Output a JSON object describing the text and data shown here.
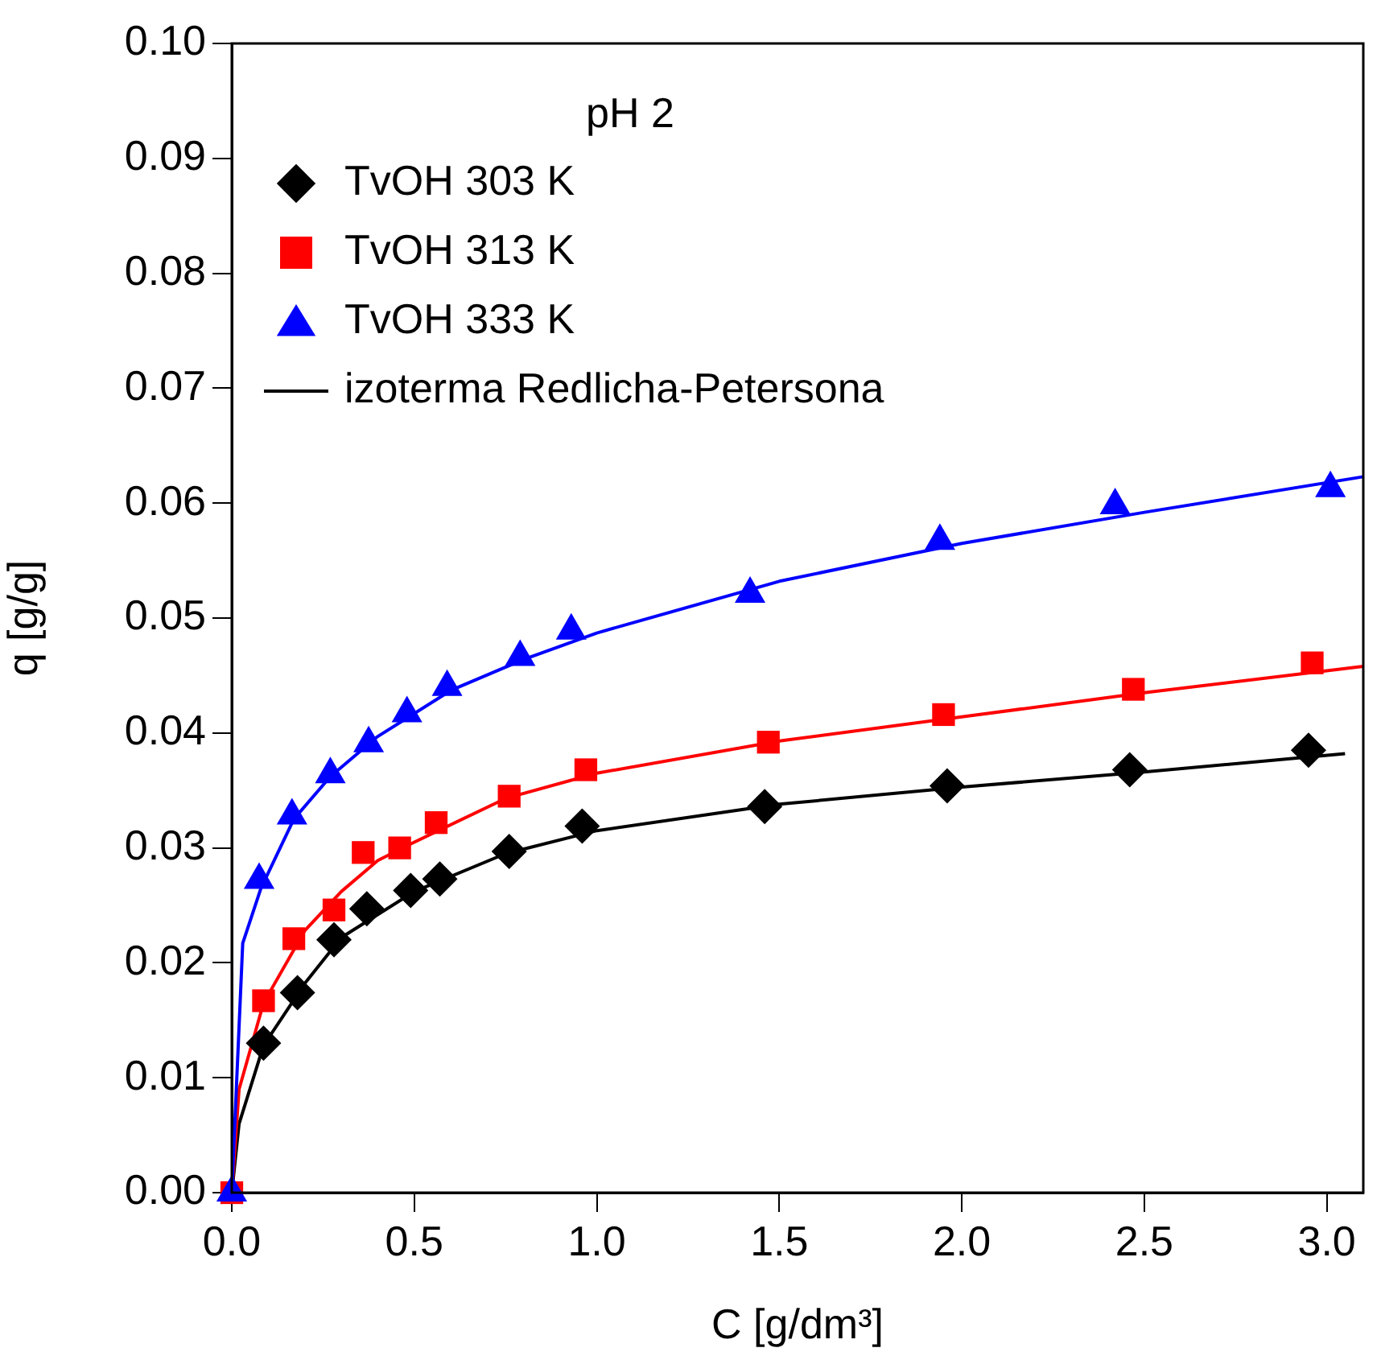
{
  "chart_data": {
    "type": "scatter",
    "xlabel": "C [g/dm³]",
    "ylabel": "q [g/g]",
    "legend_title": "pH 2",
    "legend": "top left",
    "grid": false,
    "xlim": [
      0,
      3.1
    ],
    "xticks": [
      {
        "value": 0,
        "label": "0.0"
      },
      {
        "value": 0.5,
        "label": "0.5"
      },
      {
        "value": 1,
        "label": "1.0"
      },
      {
        "value": 1.5,
        "label": "1.5"
      },
      {
        "value": 2,
        "label": "2.0"
      },
      {
        "value": 2.5,
        "label": "2.5"
      },
      {
        "value": 3,
        "label": "3.0"
      }
    ],
    "ylim": [
      0,
      0.1
    ],
    "yticks": [
      {
        "value": 0,
        "label": "0.00"
      },
      {
        "value": 0.01,
        "label": "0.01"
      },
      {
        "value": 0.02,
        "label": "0.02"
      },
      {
        "value": 0.03,
        "label": "0.03"
      },
      {
        "value": 0.04,
        "label": "0.04"
      },
      {
        "value": 0.05,
        "label": "0.05"
      },
      {
        "value": 0.06,
        "label": "0.06"
      },
      {
        "value": 0.07,
        "label": "0.07"
      },
      {
        "value": 0.08,
        "label": "0.08"
      },
      {
        "value": 0.09,
        "label": "0.09"
      },
      {
        "value": 0.1,
        "label": "0.10"
      }
    ],
    "series": [
      {
        "name": "TvOH 303 K",
        "marker": "diamond",
        "color": "#000000",
        "x": [
          0.087,
          0.18,
          0.28,
          0.37,
          0.49,
          0.57,
          0.76,
          0.96,
          1.46,
          1.96,
          2.46,
          2.95
        ],
        "values": [
          0.013,
          0.0174,
          0.022,
          0.0247,
          0.0263,
          0.0273,
          0.0297,
          0.0319,
          0.0336,
          0.0354,
          0.0368,
          0.0385
        ]
      },
      {
        "name": "TvOH 313 K",
        "marker": "square",
        "color": "#ff0000",
        "x": [
          0,
          0.087,
          0.17,
          0.28,
          0.36,
          0.46,
          0.56,
          0.76,
          0.97,
          1.47,
          1.95,
          2.47,
          2.96
        ],
        "values": [
          0,
          0.0167,
          0.0221,
          0.0246,
          0.0296,
          0.03,
          0.0322,
          0.0345,
          0.0368,
          0.0392,
          0.0416,
          0.0438,
          0.0461
        ]
      },
      {
        "name": "TvOH 333 K",
        "marker": "triangle",
        "color": "#0000ff",
        "x": [
          0,
          0.075,
          0.165,
          0.27,
          0.375,
          0.48,
          0.59,
          0.79,
          0.93,
          1.42,
          1.94,
          2.42,
          3.01
        ],
        "values": [
          0,
          0.0272,
          0.0328,
          0.0364,
          0.0391,
          0.0417,
          0.044,
          0.0466,
          0.0489,
          0.0521,
          0.0567,
          0.0598,
          0.0613
        ]
      },
      {
        "name": "izoterma Redlicha-Petersona",
        "type": "line",
        "marker": "none",
        "line_style": "solid",
        "color": "#000000",
        "x": [
          0,
          0.02,
          0.087,
          0.2,
          0.3,
          0.5,
          0.75,
          1.0,
          1.5,
          2.0,
          2.5,
          3.05
        ],
        "values": [
          0,
          0.006,
          0.0128,
          0.0182,
          0.0222,
          0.0262,
          0.0295,
          0.0315,
          0.0338,
          0.0353,
          0.0366,
          0.0382
        ]
      },
      {
        "type": "line",
        "marker": "none",
        "line_style": "solid",
        "color": "#ff0000",
        "x": [
          0,
          0.02,
          0.087,
          0.2,
          0.3,
          0.4,
          0.5,
          0.75,
          1.0,
          1.5,
          2.0,
          2.5,
          3.1
        ],
        "values": [
          0,
          0.009,
          0.0165,
          0.0228,
          0.0262,
          0.0289,
          0.0305,
          0.0343,
          0.0365,
          0.0393,
          0.0414,
          0.0435,
          0.0458
        ]
      },
      {
        "type": "line",
        "marker": "none",
        "line_style": "solid",
        "color": "#0000ff",
        "x": [
          0,
          0.03,
          0.08,
          0.17,
          0.27,
          0.4,
          0.6,
          0.8,
          1.0,
          1.5,
          2.0,
          2.5,
          3.1
        ],
        "values": [
          0,
          0.0217,
          0.0265,
          0.0325,
          0.0362,
          0.0397,
          0.0437,
          0.0464,
          0.0487,
          0.0532,
          0.0565,
          0.0592,
          0.0623
        ]
      }
    ]
  }
}
